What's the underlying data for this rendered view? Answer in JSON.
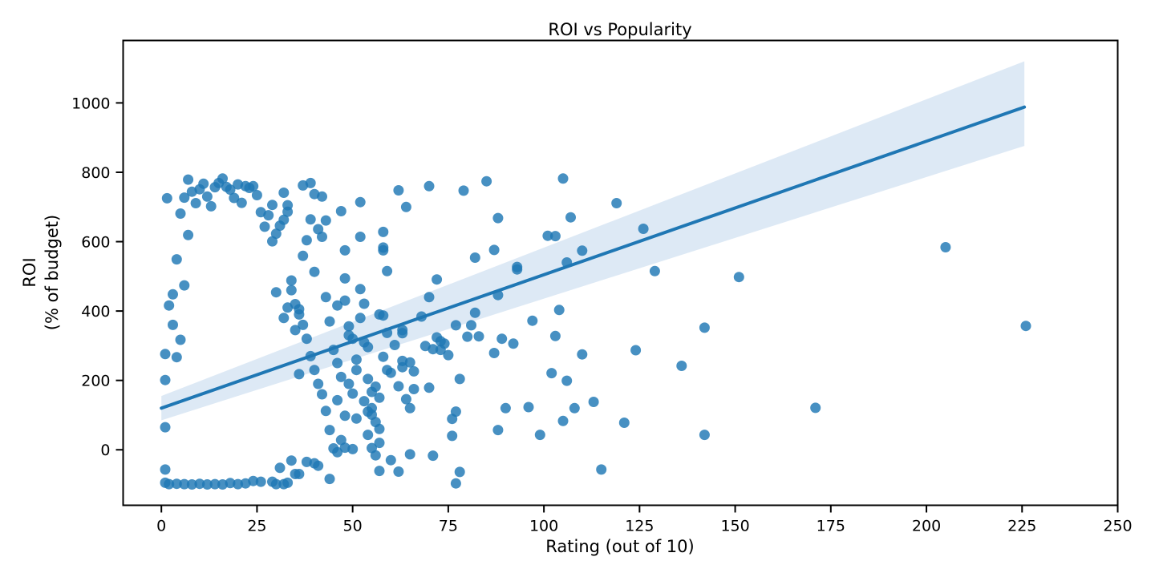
{
  "chart_data": {
    "type": "scatter",
    "title": "ROI vs Popularity",
    "xlabel": "Rating (out of 10)",
    "ylabel_line1": "ROI",
    "ylabel_line2": "(% of budget)",
    "xlim": [
      -10,
      250
    ],
    "ylim": [
      -160,
      1180
    ],
    "xticks": [
      0,
      25,
      50,
      75,
      100,
      125,
      150,
      175,
      200,
      225,
      250
    ],
    "yticks": [
      0,
      200,
      400,
      600,
      800,
      1000
    ],
    "grid": false,
    "colors": {
      "points": "#1f77b4",
      "line": "#1f77b4",
      "ci_band": "#c6dbef"
    },
    "regression": {
      "x": [
        0,
        225.6
      ],
      "y": [
        120,
        988
      ],
      "ci_lower": [
        85,
        876
      ],
      "ci_upper": [
        155,
        1120
      ]
    },
    "points": [
      [
        205,
        584
      ],
      [
        226,
        357
      ],
      [
        171,
        121
      ],
      [
        151,
        498
      ],
      [
        142,
        352
      ],
      [
        142,
        43
      ],
      [
        136,
        242
      ],
      [
        129,
        515
      ],
      [
        126,
        637
      ],
      [
        124,
        287
      ],
      [
        121,
        78
      ],
      [
        119,
        711
      ],
      [
        115,
        -57
      ],
      [
        113,
        138
      ],
      [
        110,
        574
      ],
      [
        110,
        275
      ],
      [
        108,
        120
      ],
      [
        107,
        670
      ],
      [
        106,
        540
      ],
      [
        106,
        199
      ],
      [
        105,
        782
      ],
      [
        105,
        83
      ],
      [
        104,
        403
      ],
      [
        103,
        616
      ],
      [
        103,
        328
      ],
      [
        102,
        221
      ],
      [
        101,
        617
      ],
      [
        99,
        43
      ],
      [
        97,
        372
      ],
      [
        96,
        123
      ],
      [
        93,
        520
      ],
      [
        93,
        527
      ],
      [
        92,
        306
      ],
      [
        90,
        120
      ],
      [
        89,
        320
      ],
      [
        88,
        446
      ],
      [
        88,
        57
      ],
      [
        88,
        668
      ],
      [
        87,
        576
      ],
      [
        87,
        279
      ],
      [
        85,
        774
      ],
      [
        83,
        327
      ],
      [
        82,
        395
      ],
      [
        82,
        554
      ],
      [
        81,
        359
      ],
      [
        80,
        326
      ],
      [
        79,
        747
      ],
      [
        78,
        -64
      ],
      [
        78,
        204
      ],
      [
        77,
        359
      ],
      [
        77,
        110
      ],
      [
        77,
        -97
      ],
      [
        76,
        89
      ],
      [
        76,
        40
      ],
      [
        75,
        273
      ],
      [
        74,
        306
      ],
      [
        73,
        313
      ],
      [
        73,
        288
      ],
      [
        72,
        491
      ],
      [
        72,
        324
      ],
      [
        71,
        -17
      ],
      [
        71,
        290
      ],
      [
        70,
        440
      ],
      [
        70,
        179
      ],
      [
        70,
        760
      ],
      [
        69,
        299
      ],
      [
        68,
        384
      ],
      [
        66,
        175
      ],
      [
        66,
        226
      ],
      [
        65,
        252
      ],
      [
        65,
        120
      ],
      [
        65,
        -13
      ],
      [
        64,
        700
      ],
      [
        64,
        146
      ],
      [
        63,
        238
      ],
      [
        63,
        256
      ],
      [
        63,
        345
      ],
      [
        63,
        336
      ],
      [
        62,
        183
      ],
      [
        62,
        748
      ],
      [
        62,
        -63
      ],
      [
        61,
        302
      ],
      [
        60,
        -30
      ],
      [
        60,
        222
      ],
      [
        59,
        230
      ],
      [
        59,
        515
      ],
      [
        59,
        337
      ],
      [
        58,
        575
      ],
      [
        58,
        583
      ],
      [
        58,
        628
      ],
      [
        58,
        387
      ],
      [
        58,
        268
      ],
      [
        57,
        20
      ],
      [
        57,
        150
      ],
      [
        57,
        -61
      ],
      [
        57,
        390
      ],
      [
        56,
        -16
      ],
      [
        56,
        182
      ],
      [
        55,
        5
      ],
      [
        55,
        120
      ],
      [
        55,
        101
      ],
      [
        55,
        167
      ],
      [
        54,
        43
      ],
      [
        54,
        204
      ],
      [
        54,
        296
      ],
      [
        53,
        421
      ],
      [
        53,
        310
      ],
      [
        52,
        714
      ],
      [
        52,
        614
      ],
      [
        52,
        463
      ],
      [
        51,
        230
      ],
      [
        51,
        90
      ],
      [
        50,
        162
      ],
      [
        49,
        330
      ],
      [
        49,
        356
      ],
      [
        48,
        430
      ],
      [
        48,
        494
      ],
      [
        48,
        575
      ],
      [
        48,
        98
      ],
      [
        47,
        688
      ],
      [
        47,
        28
      ],
      [
        46,
        143
      ],
      [
        46,
        416
      ],
      [
        45,
        288
      ],
      [
        44,
        -84
      ],
      [
        44,
        370
      ],
      [
        43,
        440
      ],
      [
        43,
        661
      ],
      [
        42,
        730
      ],
      [
        42,
        614
      ],
      [
        41,
        636
      ],
      [
        40,
        737
      ],
      [
        40,
        513
      ],
      [
        39,
        769
      ],
      [
        39,
        664
      ],
      [
        38,
        604
      ],
      [
        37,
        762
      ],
      [
        37,
        559
      ],
      [
        36,
        405
      ],
      [
        36,
        218
      ],
      [
        35,
        -70
      ],
      [
        35,
        345
      ],
      [
        34,
        488
      ],
      [
        33,
        705
      ],
      [
        33,
        686
      ],
      [
        32,
        663
      ],
      [
        32,
        741
      ],
      [
        31,
        646
      ],
      [
        30,
        623
      ],
      [
        30,
        454
      ],
      [
        29,
        601
      ],
      [
        29,
        706
      ],
      [
        28,
        676
      ],
      [
        27,
        643
      ],
      [
        26,
        685
      ],
      [
        25,
        734
      ],
      [
        24,
        760
      ],
      [
        23,
        755
      ],
      [
        22,
        760
      ],
      [
        21,
        712
      ],
      [
        20,
        765
      ],
      [
        19,
        726
      ],
      [
        18,
        750
      ],
      [
        17,
        758
      ],
      [
        16,
        782
      ],
      [
        15,
        769
      ],
      [
        14,
        757
      ],
      [
        13,
        702
      ],
      [
        12,
        730
      ],
      [
        11,
        767
      ],
      [
        10,
        751
      ],
      [
        9,
        711
      ],
      [
        8,
        744
      ],
      [
        7,
        779
      ],
      [
        6,
        727
      ],
      [
        5,
        681
      ],
      [
        4,
        549
      ],
      [
        3,
        448
      ],
      [
        2,
        416
      ],
      [
        1.5,
        725
      ],
      [
        1,
        276
      ],
      [
        1,
        201
      ],
      [
        1,
        65
      ],
      [
        1,
        -57
      ],
      [
        1,
        -95
      ],
      [
        3,
        360
      ],
      [
        4,
        267
      ],
      [
        5,
        317
      ],
      [
        6,
        474
      ],
      [
        7,
        619
      ],
      [
        30,
        -99
      ],
      [
        32,
        -99
      ],
      [
        33,
        -95
      ],
      [
        31,
        -52
      ],
      [
        34,
        -31
      ],
      [
        36,
        -70
      ],
      [
        38,
        -35
      ],
      [
        40,
        -39
      ],
      [
        41,
        -46
      ],
      [
        29,
        -92
      ],
      [
        26,
        -92
      ],
      [
        24,
        -90
      ],
      [
        22,
        -97
      ],
      [
        20,
        -99
      ],
      [
        18,
        -96
      ],
      [
        16,
        -100
      ],
      [
        14,
        -99
      ],
      [
        12,
        -100
      ],
      [
        10,
        -98
      ],
      [
        8,
        -100
      ],
      [
        6,
        -99
      ],
      [
        4,
        -98
      ],
      [
        2,
        -99
      ],
      [
        45,
        4
      ],
      [
        46,
        -7
      ],
      [
        48,
        6
      ],
      [
        50,
        2
      ],
      [
        44,
        57
      ],
      [
        43,
        112
      ],
      [
        42,
        160
      ],
      [
        41,
        190
      ],
      [
        40,
        230
      ],
      [
        39,
        270
      ],
      [
        38,
        320
      ],
      [
        37,
        360
      ],
      [
        36,
        390
      ],
      [
        35,
        420
      ],
      [
        34,
        460
      ],
      [
        33,
        410
      ],
      [
        32,
        380
      ],
      [
        46,
        250
      ],
      [
        47,
        210
      ],
      [
        49,
        190
      ],
      [
        51,
        260
      ],
      [
        53,
        140
      ],
      [
        50,
        320
      ],
      [
        52,
        380
      ],
      [
        54,
        110
      ],
      [
        56,
        80
      ],
      [
        57,
        60
      ]
    ]
  }
}
